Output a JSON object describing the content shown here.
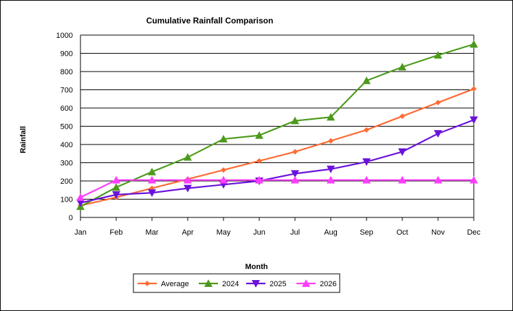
{
  "chart_data": {
    "type": "line",
    "title": "Cumulative Rainfall Comparison",
    "xlabel": "Month",
    "ylabel": "Rainfall",
    "categories": [
      "Jan",
      "Feb",
      "Mar",
      "Apr",
      "May",
      "Jun",
      "Jul",
      "Aug",
      "Sep",
      "Oct",
      "Nov",
      "Dec"
    ],
    "ylim": [
      0,
      1000
    ],
    "yticks": [
      0,
      100,
      200,
      300,
      400,
      500,
      600,
      700,
      800,
      900,
      1000
    ],
    "grid": true,
    "legend_position": "bottom",
    "series": [
      {
        "name": "Average",
        "color": "#ff6a33",
        "marker": "diamond",
        "values": [
          65,
          110,
          160,
          210,
          260,
          310,
          360,
          420,
          480,
          555,
          630,
          705
        ]
      },
      {
        "name": "2024",
        "color": "#4c9a1c",
        "marker": "triangle-up",
        "values": [
          60,
          165,
          250,
          330,
          430,
          450,
          530,
          550,
          750,
          825,
          890,
          950
        ]
      },
      {
        "name": "2025",
        "color": "#6a12db",
        "marker": "triangle-down",
        "values": [
          80,
          125,
          135,
          160,
          180,
          200,
          240,
          265,
          305,
          360,
          460,
          535
        ]
      },
      {
        "name": "2026",
        "color": "#ff3dff",
        "marker": "triangle-up",
        "values": [
          110,
          205,
          205,
          205,
          205,
          205,
          205,
          205,
          205,
          205,
          205,
          205
        ]
      }
    ]
  }
}
